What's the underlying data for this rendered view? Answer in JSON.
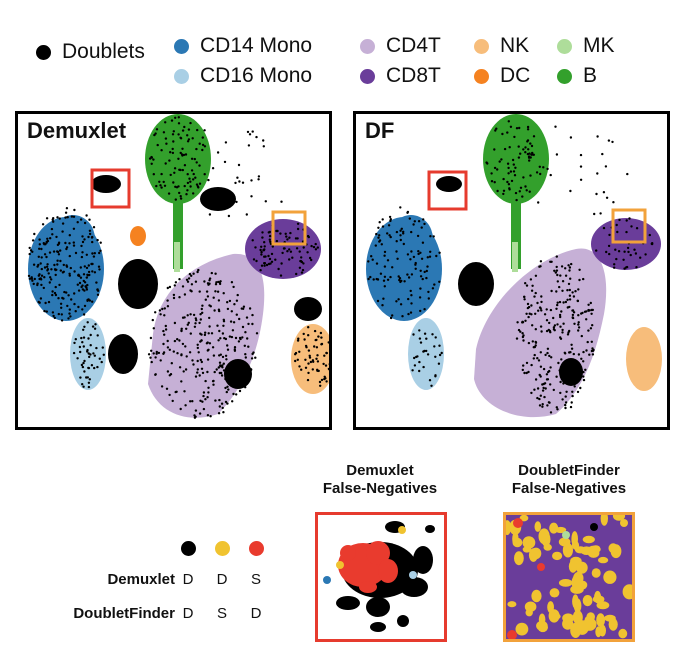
{
  "legend": {
    "doublets": {
      "label": "Doublets",
      "color": "#000000"
    },
    "cell_types": [
      {
        "label": "CD14 Mono",
        "color": "#2b78b4"
      },
      {
        "label": "CD4T",
        "color": "#c6b0d6"
      },
      {
        "label": "NK",
        "color": "#f7bd7b"
      },
      {
        "label": "MK",
        "color": "#aedd9a"
      },
      {
        "label": "CD16 Mono",
        "color": "#a9cfe5"
      },
      {
        "label": "CD8T",
        "color": "#6a3d9a"
      },
      {
        "label": "DC",
        "color": "#f58220"
      },
      {
        "label": "B",
        "color": "#33a02c"
      }
    ]
  },
  "panels": [
    {
      "title": "Demuxlet"
    },
    {
      "title": "DF"
    }
  ],
  "insets": {
    "demuxlet": {
      "title_line1": "Demuxlet",
      "title_line2": "False-Negatives",
      "border_color": "#e63b2e"
    },
    "doubletfinder": {
      "title_line1": "DoubletFinder",
      "title_line2": "False-Negatives",
      "border_color": "#f2a23b"
    }
  },
  "highlight_colors": {
    "red_box": "#e63b2e",
    "orange_box": "#f2a23b"
  },
  "key": {
    "dot_colors": [
      "#000000",
      "#f0c330",
      "#e93b2e"
    ],
    "rows": [
      {
        "label": "Demuxlet",
        "codes": [
          "D",
          "D",
          "S"
        ]
      },
      {
        "label": "DoubletFinder",
        "codes": [
          "D",
          "S",
          "D"
        ]
      }
    ]
  }
}
